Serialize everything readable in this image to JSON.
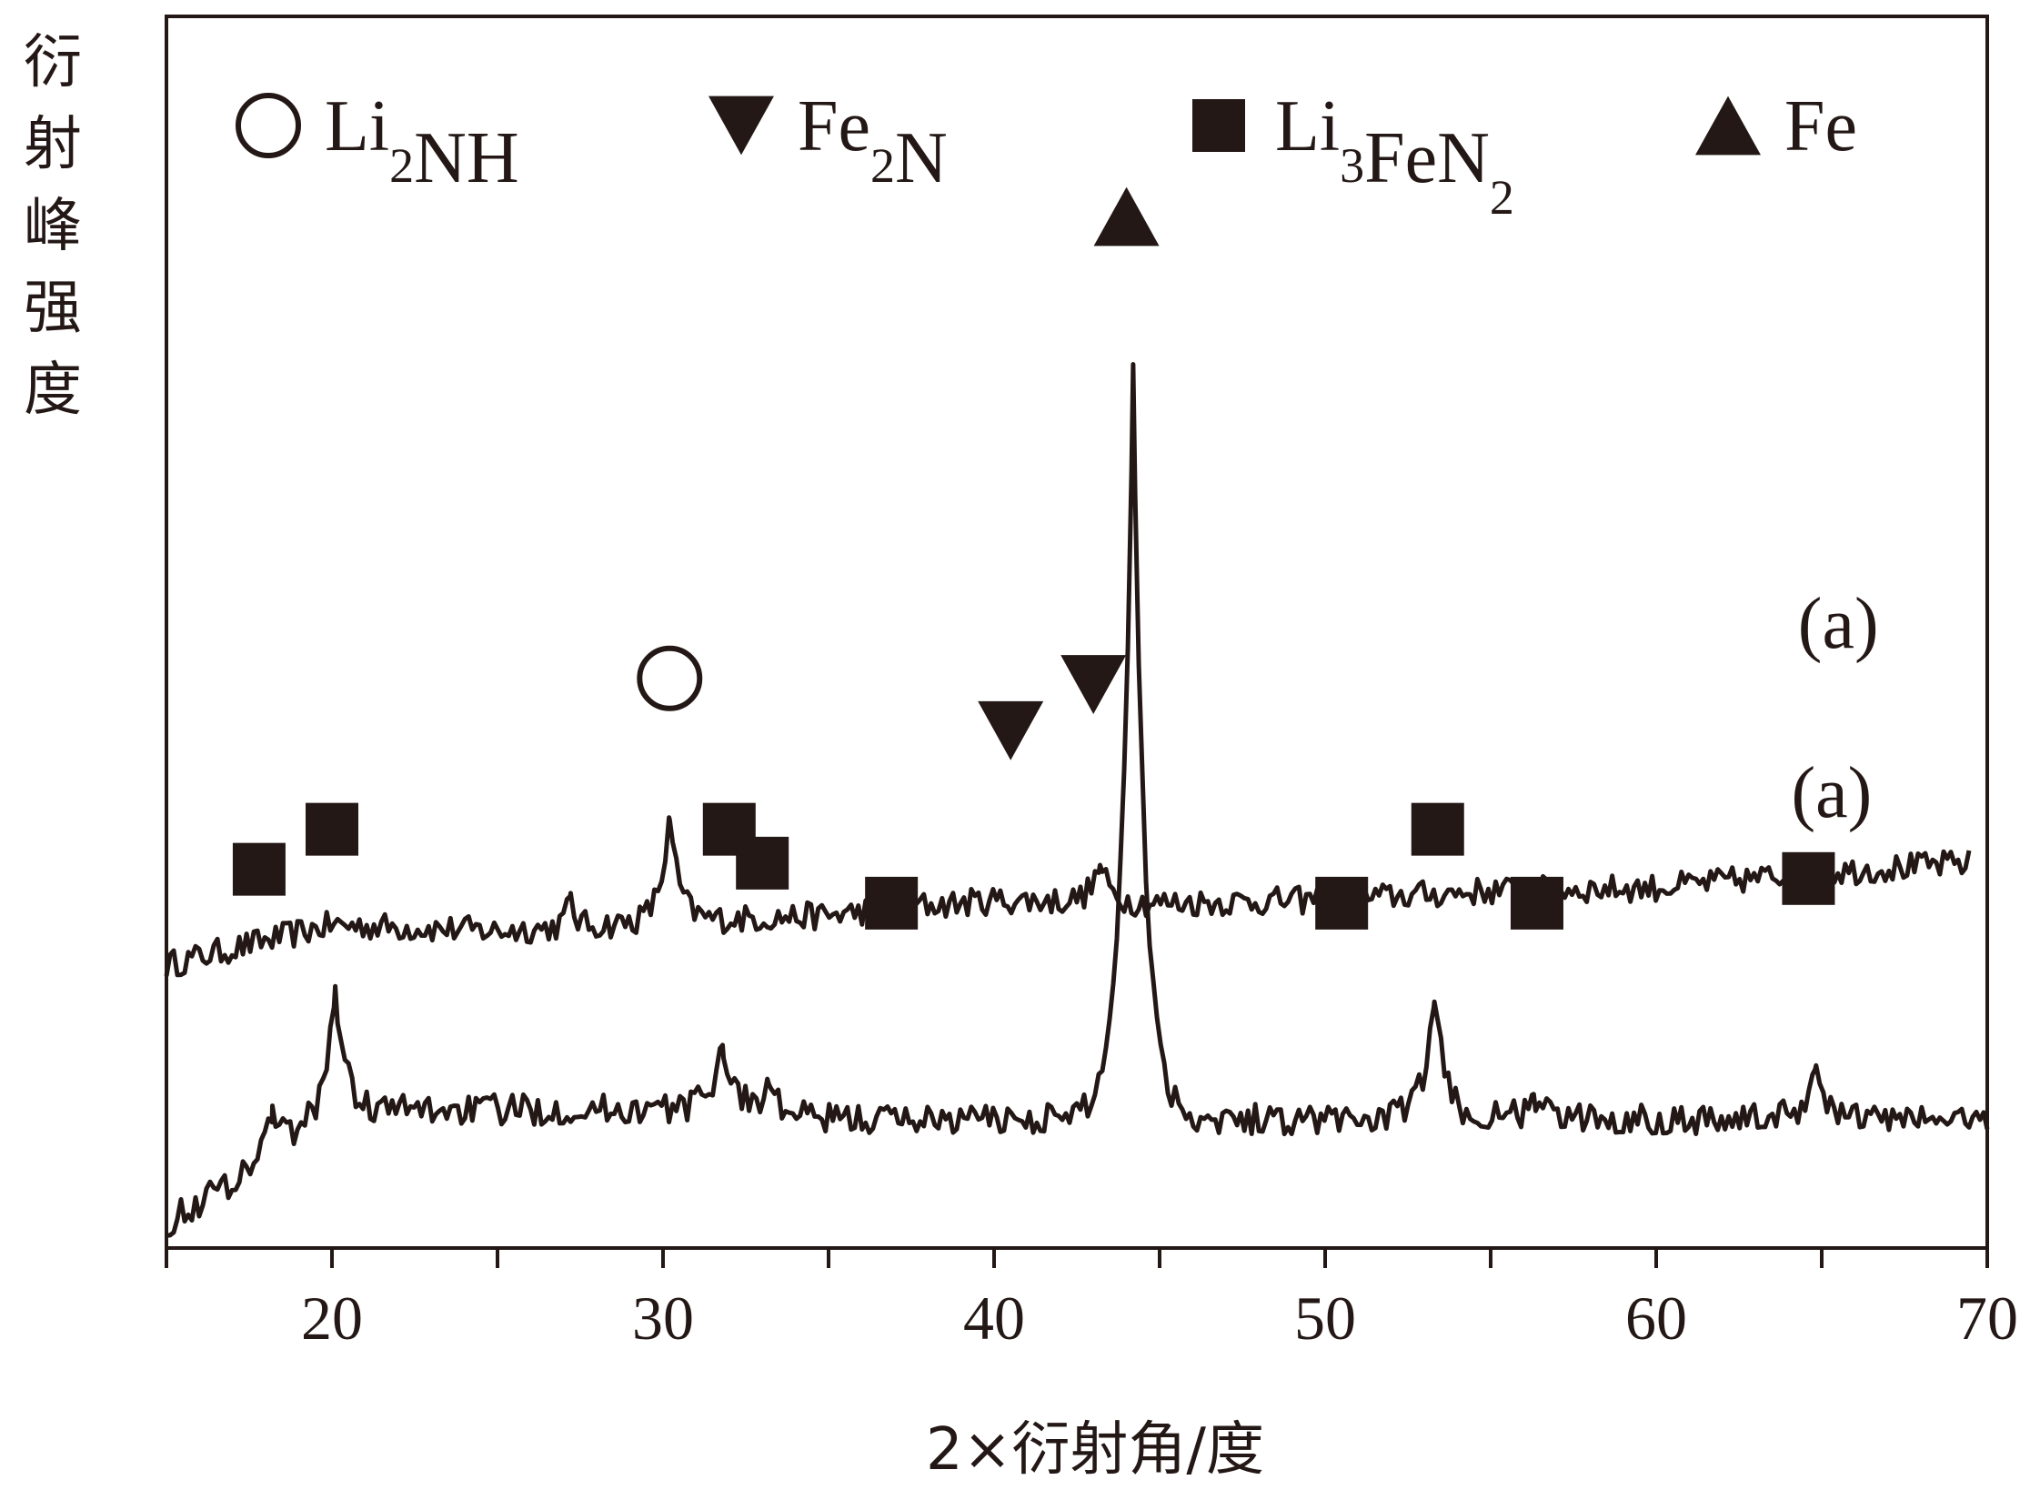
{
  "chart_data": {
    "type": "line",
    "xlabel": "2×衍射角/度",
    "ylabel": "衍射峰强度",
    "xlim": [
      15,
      70
    ],
    "x_ticks": [
      20,
      30,
      40,
      50,
      60,
      70
    ],
    "x_minor_ticks": [
      25,
      35,
      45,
      55,
      65
    ],
    "grid": false,
    "legend_position": "top",
    "legend": [
      {
        "marker": "open-circle",
        "label": "Li",
        "sub": "2",
        "tail": "NH",
        "sub2": "",
        "tail2": ""
      },
      {
        "marker": "down-triangle",
        "label": "Fe",
        "sub": "2",
        "tail": "N",
        "sub2": "",
        "tail2": ""
      },
      {
        "marker": "filled-square",
        "label": "Li",
        "sub": "3",
        "tail": "FeN",
        "sub2": "2",
        "tail2": ""
      },
      {
        "marker": "up-triangle",
        "label": "Fe",
        "sub": "",
        "tail": "",
        "sub2": "",
        "tail2": ""
      }
    ],
    "series": [
      {
        "label": "(a)",
        "x_range": [
          15,
          69.5
        ],
        "baseline": [
          [
            15,
            0.92
          ],
          [
            20,
            1.05
          ],
          [
            25,
            1.03
          ],
          [
            30,
            1.06
          ],
          [
            35,
            1.08
          ],
          [
            40,
            1.13
          ],
          [
            45,
            1.12
          ],
          [
            50,
            1.13
          ],
          [
            55,
            1.16
          ],
          [
            60,
            1.17
          ],
          [
            65,
            1.22
          ],
          [
            69.5,
            1.25
          ]
        ],
        "noise": 0.045,
        "peaks": [
          {
            "x": 27.2,
            "height": 0.1,
            "width": 0.15
          },
          {
            "x": 30.2,
            "height": 0.33,
            "width": 0.3
          },
          {
            "x": 37.0,
            "height": 0.09,
            "width": 0.3
          },
          {
            "x": 43.2,
            "height": 0.12,
            "width": 0.3
          }
        ],
        "markers": [
          {
            "x": 30.2,
            "marker": "open-circle",
            "y": 1.85
          },
          {
            "x": 40.5,
            "marker": "down-triangle",
            "y": 1.68
          },
          {
            "x": 43.0,
            "marker": "down-triangle",
            "y": 1.83
          }
        ]
      },
      {
        "label": "(a)",
        "x_range": [
          15,
          70
        ],
        "baseline": [
          [
            15,
            0.08
          ],
          [
            17,
            0.22
          ],
          [
            20,
            0.45
          ],
          [
            25,
            0.45
          ],
          [
            30,
            0.45
          ],
          [
            35,
            0.42
          ],
          [
            40,
            0.42
          ],
          [
            45,
            0.42
          ],
          [
            50,
            0.42
          ],
          [
            55,
            0.42
          ],
          [
            60,
            0.42
          ],
          [
            65,
            0.42
          ],
          [
            70,
            0.42
          ]
        ],
        "noise": 0.05,
        "peaks": [
          {
            "x": 18.2,
            "height": 0.15,
            "width": 0.25
          },
          {
            "x": 20.1,
            "height": 0.4,
            "width": 0.3
          },
          {
            "x": 31.8,
            "height": 0.22,
            "width": 0.4
          },
          {
            "x": 33.2,
            "height": 0.1,
            "width": 0.3
          },
          {
            "x": 44.2,
            "height": 2.45,
            "width": 0.35
          },
          {
            "x": 53.3,
            "height": 0.38,
            "width": 0.35
          },
          {
            "x": 56.3,
            "height": 0.08,
            "width": 0.3
          },
          {
            "x": 64.8,
            "height": 0.16,
            "width": 0.35
          }
        ],
        "markers": [
          {
            "x": 17.8,
            "marker": "filled-square",
            "y": 1.23
          },
          {
            "x": 20.0,
            "marker": "filled-square",
            "y": 1.36
          },
          {
            "x": 32.0,
            "marker": "filled-square",
            "y": 1.36
          },
          {
            "x": 33.0,
            "marker": "filled-square",
            "y": 1.25
          },
          {
            "x": 36.9,
            "marker": "filled-square",
            "y": 1.12
          },
          {
            "x": 44.0,
            "marker": "up-triangle",
            "y": 3.35
          },
          {
            "x": 50.5,
            "marker": "filled-square",
            "y": 1.12
          },
          {
            "x": 53.4,
            "marker": "filled-square",
            "y": 1.36
          },
          {
            "x": 56.4,
            "marker": "filled-square",
            "y": 1.12
          },
          {
            "x": 64.6,
            "marker": "filled-square",
            "y": 1.2
          }
        ]
      }
    ],
    "curve_labels": [
      {
        "text": "(a)",
        "x": 65.5,
        "y": 1.95
      },
      {
        "text": "(a)",
        "x": 65.3,
        "y": 1.4
      }
    ],
    "colors": {
      "line": "#231815",
      "marker": "#231815",
      "axis": "#231815"
    }
  }
}
